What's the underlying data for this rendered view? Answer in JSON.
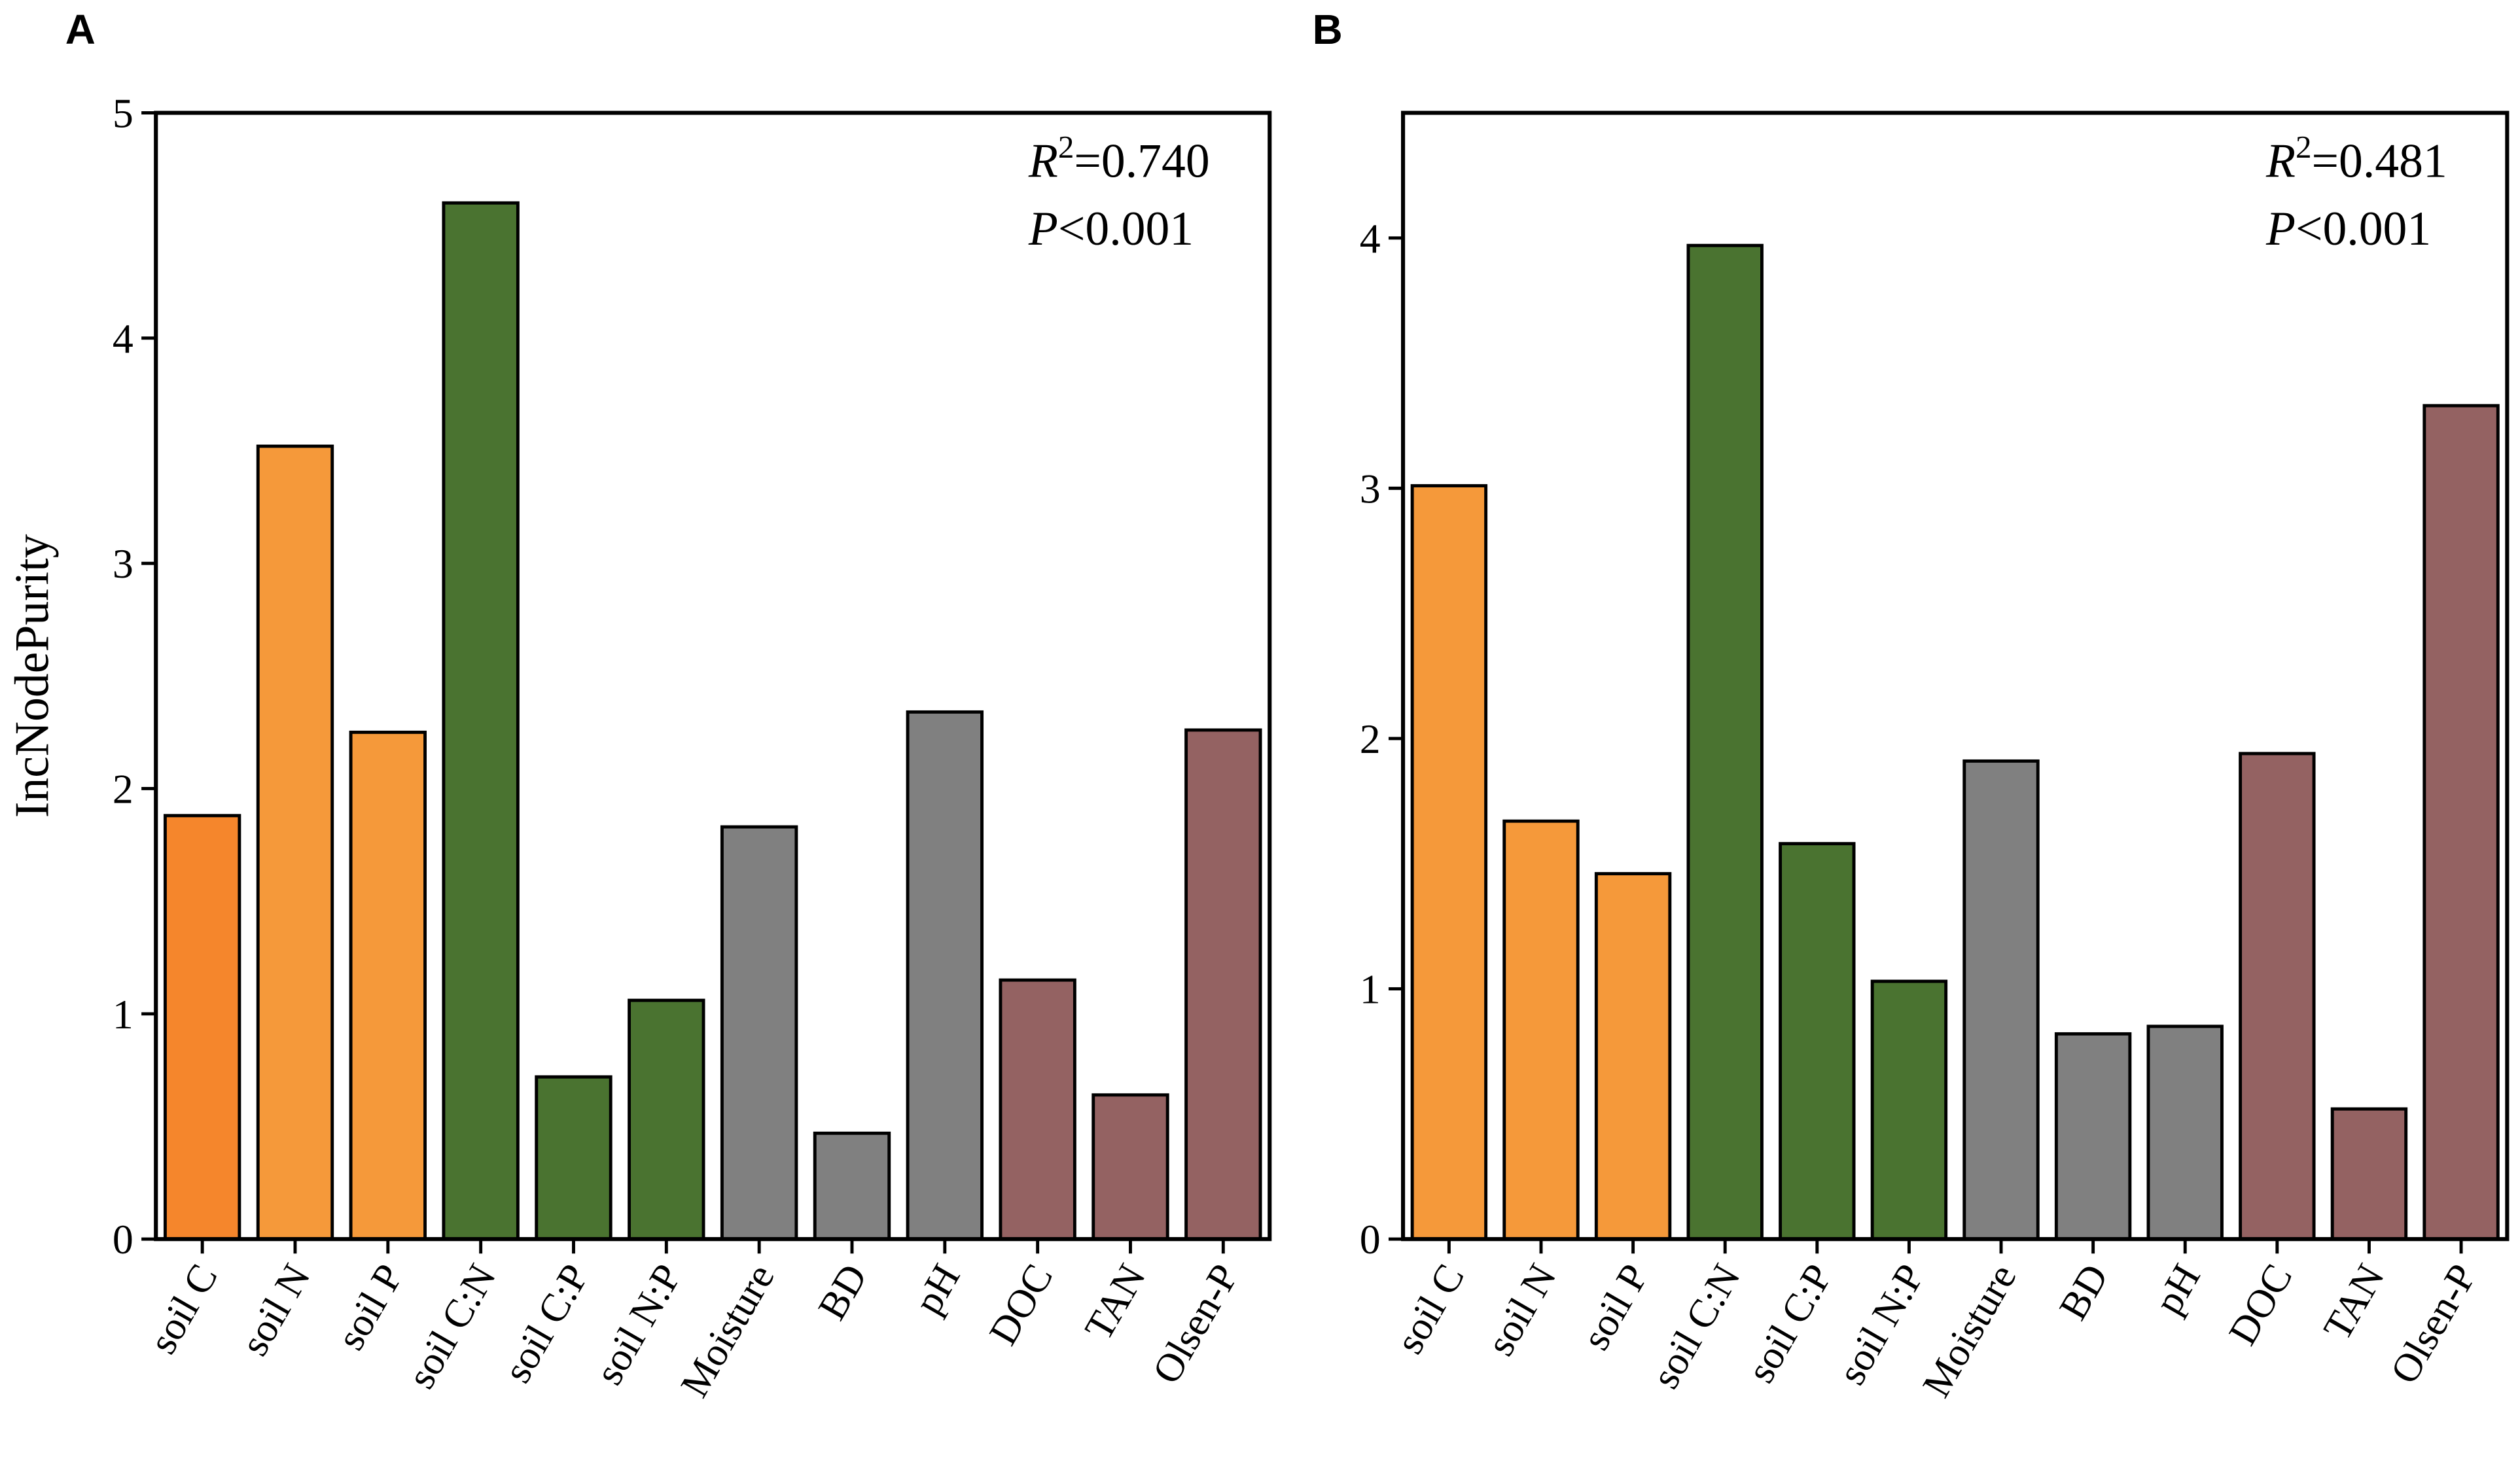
{
  "chart_data": [
    {
      "type": "bar",
      "label": "A",
      "y_label": "IncNodePurity",
      "categories": [
        "soil C",
        "soil N",
        "soil P",
        "soil C:N",
        "soil C:P",
        "soil N:P",
        "Moisture",
        "BD",
        "pH",
        "DOC",
        "TAN",
        "Olsen-P"
      ],
      "values": [
        1.88,
        3.52,
        2.25,
        4.6,
        0.72,
        1.06,
        1.83,
        0.47,
        2.34,
        1.15,
        0.64,
        2.26
      ],
      "colors": [
        "#f5862c",
        "#f5993a",
        "#f5993a",
        "#4a7330",
        "#4a7330",
        "#4a7330",
        "#808080",
        "#808080",
        "#808080",
        "#946262",
        "#946262",
        "#946262"
      ],
      "ylim": [
        0,
        5
      ],
      "yticks": [
        0,
        1,
        2,
        3,
        4,
        5
      ],
      "annotations": [
        {
          "italic": "R",
          "sup": "2",
          "text": "=0.740"
        },
        {
          "italic": "P",
          "text": "<0.001"
        }
      ]
    },
    {
      "type": "bar",
      "label": "B",
      "categories": [
        "soil C",
        "soil N",
        "soil P",
        "soil C:N",
        "soil C:P",
        "soil N:P",
        "Moisture",
        "BD",
        "pH",
        "DOC",
        "TAN",
        "Olsen-P"
      ],
      "values": [
        3.01,
        1.67,
        1.46,
        3.97,
        1.58,
        1.03,
        1.91,
        0.82,
        0.85,
        1.94,
        0.52,
        3.33
      ],
      "colors": [
        "#f5993a",
        "#f5993a",
        "#f5993a",
        "#4a7330",
        "#4a7330",
        "#4a7330",
        "#808080",
        "#808080",
        "#808080",
        "#946262",
        "#946262",
        "#946262"
      ],
      "ylim": [
        0,
        4.5
      ],
      "yticks": [
        0,
        1,
        2,
        3,
        4
      ],
      "annotations": [
        {
          "italic": "R",
          "sup": "2",
          "text": "=0.481"
        },
        {
          "italic": "P",
          "text": "<0.001"
        }
      ]
    }
  ]
}
